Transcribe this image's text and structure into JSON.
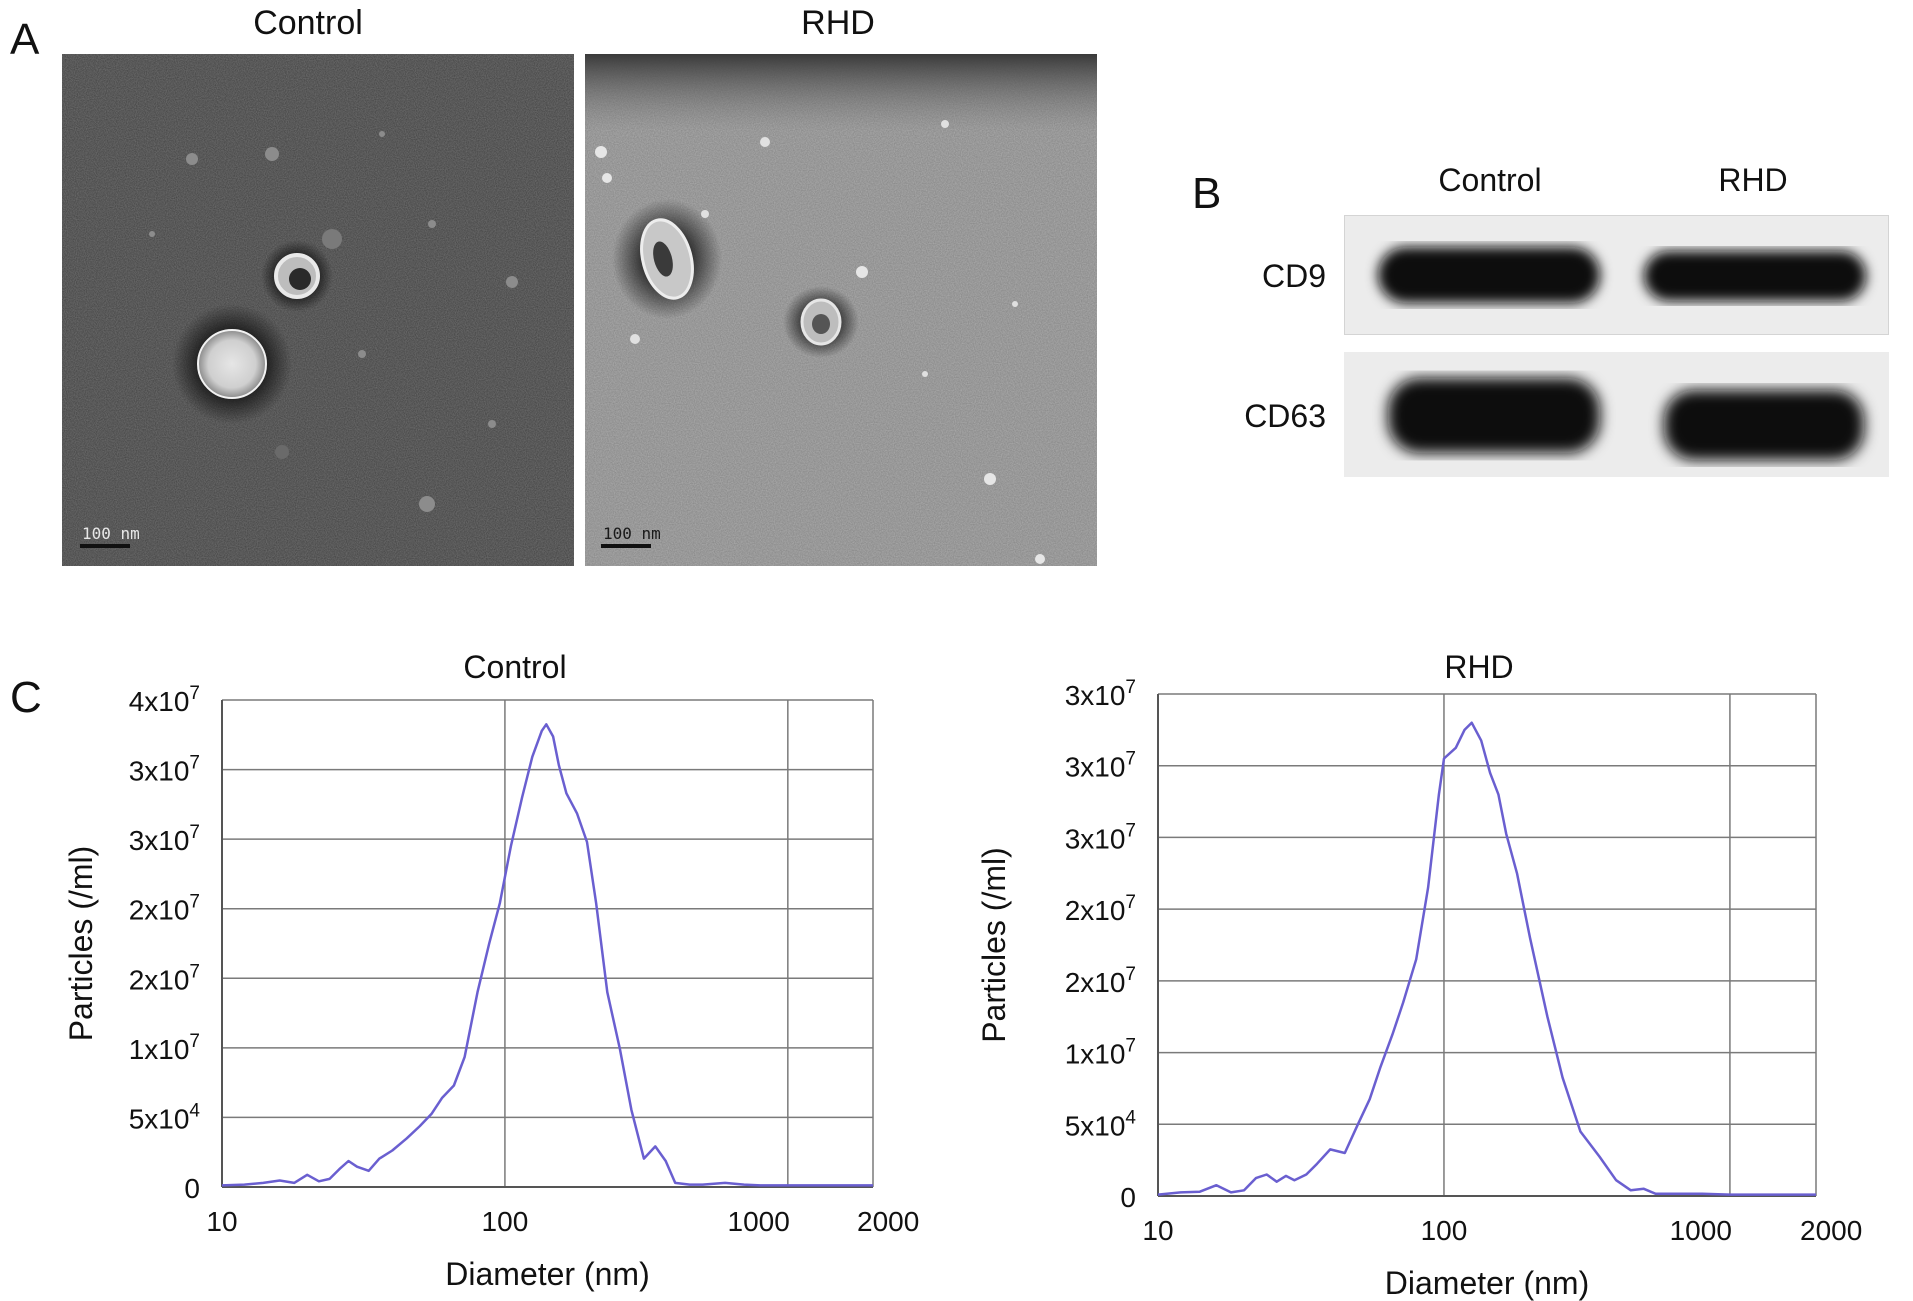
{
  "panels": {
    "A": {
      "letter": "A",
      "images": [
        {
          "title": "Control",
          "scale_bar": "100 nm"
        },
        {
          "title": "RHD",
          "scale_bar": "100 nm"
        }
      ]
    },
    "B": {
      "letter": "B",
      "columns": [
        "Control",
        "RHD"
      ],
      "rows": [
        "CD9",
        "CD63"
      ]
    },
    "C": {
      "letter": "C"
    }
  },
  "chart_data": [
    {
      "type": "line",
      "title": "Control",
      "xlabel": "Diameter (nm)",
      "ylabel": "Particles (/ml)",
      "x_scale": "log",
      "xlim": [
        10,
        2000
      ],
      "x_ticks": [
        10,
        100,
        1000,
        2000
      ],
      "x_tick_labels": [
        "10",
        "100",
        "1000",
        "2000"
      ],
      "y_tick_labels": [
        {
          "base": "0",
          "exp": ""
        },
        {
          "base": "5x10",
          "exp": "4"
        },
        {
          "base": "1x10",
          "exp": "7"
        },
        {
          "base": "2x10",
          "exp": "7"
        },
        {
          "base": "2x10",
          "exp": "7"
        },
        {
          "base": "3x10",
          "exp": "7"
        },
        {
          "base": "3x10",
          "exp": "7"
        },
        {
          "base": "4x10",
          "exp": "7"
        }
      ],
      "ylim": [
        0,
        6
      ],
      "grid": true,
      "color": "#6a5fd0",
      "series": [
        {
          "x": [
            10,
            12,
            14,
            16,
            18,
            20,
            22,
            24,
            26,
            28,
            30,
            33,
            36,
            40,
            45,
            50,
            55,
            60,
            66,
            72,
            80,
            88,
            96,
            105,
            115,
            125,
            135,
            140,
            148,
            155,
            165,
            180,
            195,
            210,
            230,
            255,
            280,
            310,
            340,
            370,
            400,
            450,
            500,
            600,
            700,
            800,
            1000,
            1300,
            1600,
            2000
          ],
          "y": [
            0.02,
            0.03,
            0.05,
            0.08,
            0.05,
            0.15,
            0.07,
            0.1,
            0.22,
            0.32,
            0.25,
            0.2,
            0.35,
            0.45,
            0.6,
            0.75,
            0.9,
            1.1,
            1.25,
            1.6,
            2.4,
            3.0,
            3.5,
            4.2,
            4.8,
            5.3,
            5.62,
            5.7,
            5.55,
            5.2,
            4.85,
            4.6,
            4.25,
            3.5,
            2.4,
            1.7,
            0.95,
            0.35,
            0.5,
            0.32,
            0.05,
            0.03,
            0.03,
            0.05,
            0.03,
            0.02,
            0.02,
            0.02,
            0.02,
            0.02
          ]
        }
      ]
    },
    {
      "type": "line",
      "title": "RHD",
      "xlabel": "Diameter (nm)",
      "ylabel": "Particles (/ml)",
      "x_scale": "log",
      "xlim": [
        10,
        2000
      ],
      "x_ticks": [
        10,
        100,
        1000,
        2000
      ],
      "x_tick_labels": [
        "10",
        "100",
        "1000",
        "2000"
      ],
      "y_tick_labels": [
        {
          "base": "0",
          "exp": ""
        },
        {
          "base": "5x10",
          "exp": "4"
        },
        {
          "base": "1x10",
          "exp": "7"
        },
        {
          "base": "2x10",
          "exp": "7"
        },
        {
          "base": "2x10",
          "exp": "7"
        },
        {
          "base": "3x10",
          "exp": "7"
        },
        {
          "base": "3x10",
          "exp": "7"
        },
        {
          "base": "3x10",
          "exp": "7"
        }
      ],
      "ylim": [
        0,
        7
      ],
      "grid": true,
      "color": "#6a5fd0",
      "series": [
        {
          "x": [
            10,
            12,
            14,
            16,
            18,
            20,
            22,
            24,
            26,
            28,
            30,
            33,
            36,
            40,
            45,
            50,
            55,
            60,
            66,
            72,
            80,
            88,
            96,
            100,
            110,
            118,
            125,
            135,
            145,
            155,
            165,
            180,
            200,
            230,
            260,
            300,
            350,
            400,
            450,
            500,
            550,
            650,
            800,
            1000,
            1300,
            1600,
            2000
          ],
          "y": [
            0.02,
            0.05,
            0.06,
            0.15,
            0.05,
            0.08,
            0.25,
            0.3,
            0.2,
            0.28,
            0.22,
            0.3,
            0.45,
            0.65,
            0.6,
            1.0,
            1.35,
            1.8,
            2.25,
            2.7,
            3.3,
            4.3,
            5.6,
            6.1,
            6.25,
            6.5,
            6.6,
            6.35,
            5.9,
            5.6,
            5.05,
            4.5,
            3.6,
            2.5,
            1.65,
            0.9,
            0.55,
            0.22,
            0.08,
            0.1,
            0.03,
            0.03,
            0.03,
            0.02,
            0.02,
            0.02,
            0.02
          ]
        }
      ]
    }
  ]
}
